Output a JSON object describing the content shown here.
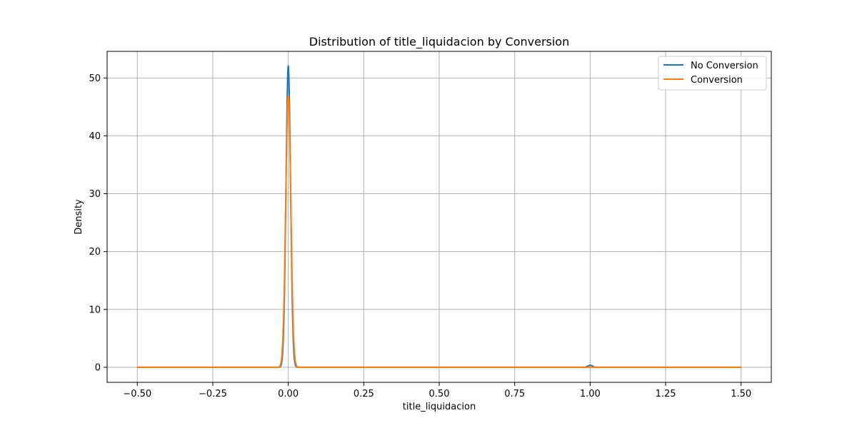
{
  "chart_data": {
    "type": "line",
    "title": "Distribution of title_liquidacion by Conversion",
    "xlabel": "title_liquidacion",
    "ylabel": "Density",
    "xlim": [
      -0.6,
      1.6
    ],
    "ylim": [
      -2.6,
      54.6
    ],
    "xticks": [
      -0.5,
      -0.25,
      0.0,
      0.25,
      0.5,
      0.75,
      1.0,
      1.25,
      1.5
    ],
    "xtick_labels": [
      "−0.50",
      "−0.25",
      "0.00",
      "0.25",
      "0.50",
      "0.75",
      "1.00",
      "1.25",
      "1.50"
    ],
    "yticks": [
      0,
      10,
      20,
      30,
      40,
      50
    ],
    "ytick_labels": [
      "0",
      "10",
      "20",
      "30",
      "40",
      "50"
    ],
    "grid": true,
    "legend_position": "upper right",
    "x_range": [
      -0.5,
      1.5
    ],
    "series": [
      {
        "name": "No Conversion",
        "color": "#1f77b4",
        "peaks": [
          {
            "center": 0.0,
            "height": 52.1,
            "sigma": 0.0076
          },
          {
            "center": 1.0,
            "height": 0.35,
            "sigma": 0.0076
          }
        ]
      },
      {
        "name": "Conversion",
        "color": "#ff7f0e",
        "peaks": [
          {
            "center": 0.0,
            "height": 46.9,
            "sigma": 0.0085
          }
        ]
      }
    ]
  }
}
